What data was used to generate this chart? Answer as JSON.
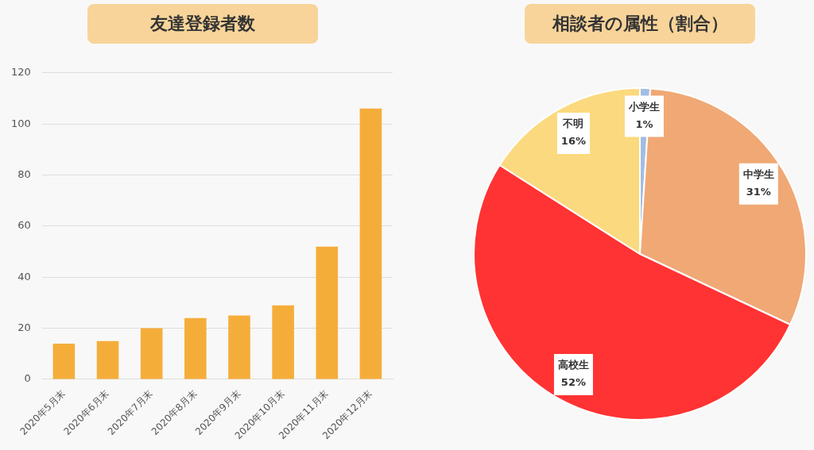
{
  "chart_data": [
    {
      "type": "bar",
      "title": "友達登録者数",
      "categories": [
        "2020年5月末",
        "2020年6月末",
        "2020年7月末",
        "2020年8月末",
        "2020年9月末",
        "2020年10月末",
        "2020年11月末",
        "2020年12月末"
      ],
      "values": [
        14,
        15,
        20,
        24,
        25,
        29,
        52,
        106
      ],
      "color": "#f5ad3a",
      "ylim": [
        0,
        120
      ],
      "yticks": [
        0,
        20,
        40,
        60,
        80,
        100,
        120
      ],
      "grid": "y",
      "legend": false
    },
    {
      "type": "pie",
      "title": "相談者の属性（割合）",
      "categories": [
        "小学生",
        "中学生",
        "高校生",
        "不明"
      ],
      "values": [
        1,
        31,
        52,
        16
      ],
      "colors": [
        "#a3bde3",
        "#f0a875",
        "#ff3333",
        "#fbd97e"
      ],
      "value_labels": [
        "1%",
        "31%",
        "52%",
        "16%"
      ],
      "legend": false
    }
  ]
}
